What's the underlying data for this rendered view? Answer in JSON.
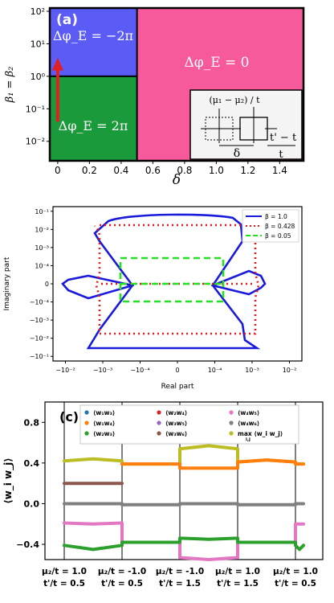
{
  "chart_data": [
    {
      "type": "heatmap",
      "panel_label": "(a)",
      "title": "",
      "xlabel": "δ",
      "ylabel": "β₁ = β₂",
      "xlim": [
        -0.05,
        1.55
      ],
      "ylim_log10": [
        -2.6,
        2.1
      ],
      "x_ticks": [
        "0",
        "0.2",
        "0.4",
        "0.6",
        "0.8",
        "1.0",
        "1.2",
        "1.4"
      ],
      "x_tick_values": [
        0,
        0.2,
        0.4,
        0.6,
        0.8,
        1.0,
        1.2,
        1.4
      ],
      "y_ticks": [
        "10²",
        "10¹",
        "10⁰",
        "10⁻¹",
        "10⁻²"
      ],
      "y_tick_exponents": [
        2,
        1,
        0,
        -1,
        -2
      ],
      "boundary_x": 0.5,
      "boundary_y": 1,
      "regions": [
        {
          "label": "Δφ_E = −2π",
          "x_range": [
            -0.05,
            0.5
          ],
          "y_range": [
            1,
            125
          ],
          "color": "#5a5cf5"
        },
        {
          "label": "Δφ_E = 2π",
          "x_range": [
            -0.05,
            0.5
          ],
          "y_range": [
            0.0025,
            1
          ],
          "color": "#1a9a3a"
        },
        {
          "label": "Δφ_E = 0",
          "x_range": [
            0.5,
            1.55
          ],
          "y_range": [
            0.0025,
            125
          ],
          "color": "#f75a9a"
        }
      ],
      "arrow": {
        "x": 0,
        "y_from": 0.04,
        "y_to": 3,
        "color": "#e02020"
      },
      "inset_labels": [
        "(μ₁ − μ₂) / t",
        "t' − t",
        "δ",
        "t"
      ],
      "grid": false
    },
    {
      "type": "line",
      "panel_label": "",
      "title": "",
      "xlabel": "Real part",
      "ylabel": "Imaginary part",
      "x_ticks": [
        "−10⁻²",
        "−10⁻³",
        "−10⁻⁴",
        "0",
        "10⁻⁴",
        "10⁻³",
        "10⁻²"
      ],
      "y_ticks": [
        "10⁻¹",
        "10⁻²",
        "10⁻³",
        "10⁻⁴",
        "0",
        "−10⁻⁴",
        "−10⁻³",
        "−10⁻²",
        "−10⁻¹"
      ],
      "scale": "symlog",
      "legend_position": "top-right",
      "series": [
        {
          "name": "β = 1.0",
          "style": "solid",
          "color": "#1a1adb"
        },
        {
          "name": "β = 0.428",
          "style": "dotted",
          "color": "#e81818"
        },
        {
          "name": "β = 0.05",
          "style": "dashed",
          "color": "#22e022"
        }
      ]
    },
    {
      "type": "line",
      "panel_label": "(c)",
      "title": "",
      "xlabel": "",
      "ylabel": "⟨w_i w_j⟩",
      "ylim": [
        -0.55,
        1.0
      ],
      "y_ticks": [
        0.8,
        0.4,
        0.0,
        -0.4
      ],
      "y_tick_labels": [
        "0.8",
        "0.4",
        "0.0",
        "−0.4"
      ],
      "segments": [
        {
          "label_top": "μ₂/t = 1.0",
          "label_bottom": "t'/t = 0.5"
        },
        {
          "label_top": "μ₂/t = -1.0",
          "label_bottom": "t'/t = 0.5"
        },
        {
          "label_top": "μ₂/t = -1.0",
          "label_bottom": "t'/t = 1.5"
        },
        {
          "label_top": "μ₂/t = 1.0",
          "label_bottom": "t'/t = 1.5"
        },
        {
          "label_top": "μ₂/t = 1.0",
          "label_bottom": "t'/t = 0.5"
        }
      ],
      "legend": [
        {
          "name": "⟨w₁w₃⟩",
          "color": "#1f77b4"
        },
        {
          "name": "⟨w₂w₄⟩",
          "color": "#d62728"
        },
        {
          "name": "⟨w₄w₅⟩",
          "color": "#e377c2"
        },
        {
          "name": "⟨w₁w₄⟩",
          "color": "#ff7f0e"
        },
        {
          "name": "⟨w₃w₅⟩",
          "color": "#9467bd"
        },
        {
          "name": "⟨w₄w₆⟩",
          "color": "#7f7f7f"
        },
        {
          "name": "⟨w₂w₃⟩",
          "color": "#2ca02c"
        },
        {
          "name": "⟨w₃w₆⟩",
          "color": "#8c564b"
        },
        {
          "name": "max ⟨w_i w_j⟩",
          "sub": "i,j",
          "color": "#bcbd22"
        }
      ],
      "series": [
        {
          "name": "max ⟨w_i w_j⟩",
          "color": "#bcbd22",
          "values": [
            [
              0.42,
              0.44,
              0.42
            ],
            [
              0.39,
              0.39,
              0.39
            ],
            [
              0.54,
              0.57,
              0.54
            ],
            [
              0.41,
              0.43,
              0.41
            ],
            [
              0.39,
              0.39,
              0.39
            ]
          ]
        },
        {
          "name": "⟨w₁w₄⟩",
          "color": "#ff7f0e",
          "values": [
            [
              null,
              null,
              null
            ],
            [
              0.39,
              0.39,
              0.39
            ],
            [
              0.35,
              0.35,
              0.35
            ],
            [
              0.41,
              0.43,
              0.41
            ],
            [
              0.39,
              0.39,
              0.39
            ]
          ]
        },
        {
          "name": "⟨w₃w₆⟩",
          "color": "#8c564b",
          "values": [
            [
              0.2,
              0.2,
              0.2
            ],
            [
              null,
              null,
              null
            ],
            [
              null,
              null,
              null
            ],
            [
              null,
              null,
              null
            ],
            [
              null,
              null,
              null
            ]
          ]
        },
        {
          "name": "⟨w₄w₆⟩",
          "color": "#7f7f7f",
          "values": [
            [
              0.0,
              0.0,
              0.0
            ],
            [
              -0.01,
              -0.01,
              -0.01
            ],
            [
              0.0,
              0.0,
              0.0
            ],
            [
              -0.01,
              -0.01,
              -0.01
            ],
            [
              0.0,
              0.0,
              0.0
            ]
          ]
        },
        {
          "name": "⟨w₄w₅⟩",
          "color": "#e377c2",
          "values": [
            [
              -0.19,
              -0.2,
              -0.19
            ],
            [
              -0.38,
              -0.38,
              -0.38
            ],
            [
              -0.53,
              -0.55,
              -0.53
            ],
            [
              -0.38,
              -0.38,
              -0.38
            ],
            [
              -0.2,
              -0.2,
              -0.2
            ]
          ]
        },
        {
          "name": "⟨w₂w₃⟩",
          "color": "#2ca02c",
          "values": [
            [
              -0.41,
              -0.45,
              -0.41
            ],
            [
              -0.38,
              -0.38,
              -0.38
            ],
            [
              -0.34,
              -0.35,
              -0.34
            ],
            [
              -0.38,
              -0.38,
              -0.38
            ],
            [
              -0.41,
              -0.45,
              -0.41
            ]
          ]
        }
      ]
    }
  ]
}
